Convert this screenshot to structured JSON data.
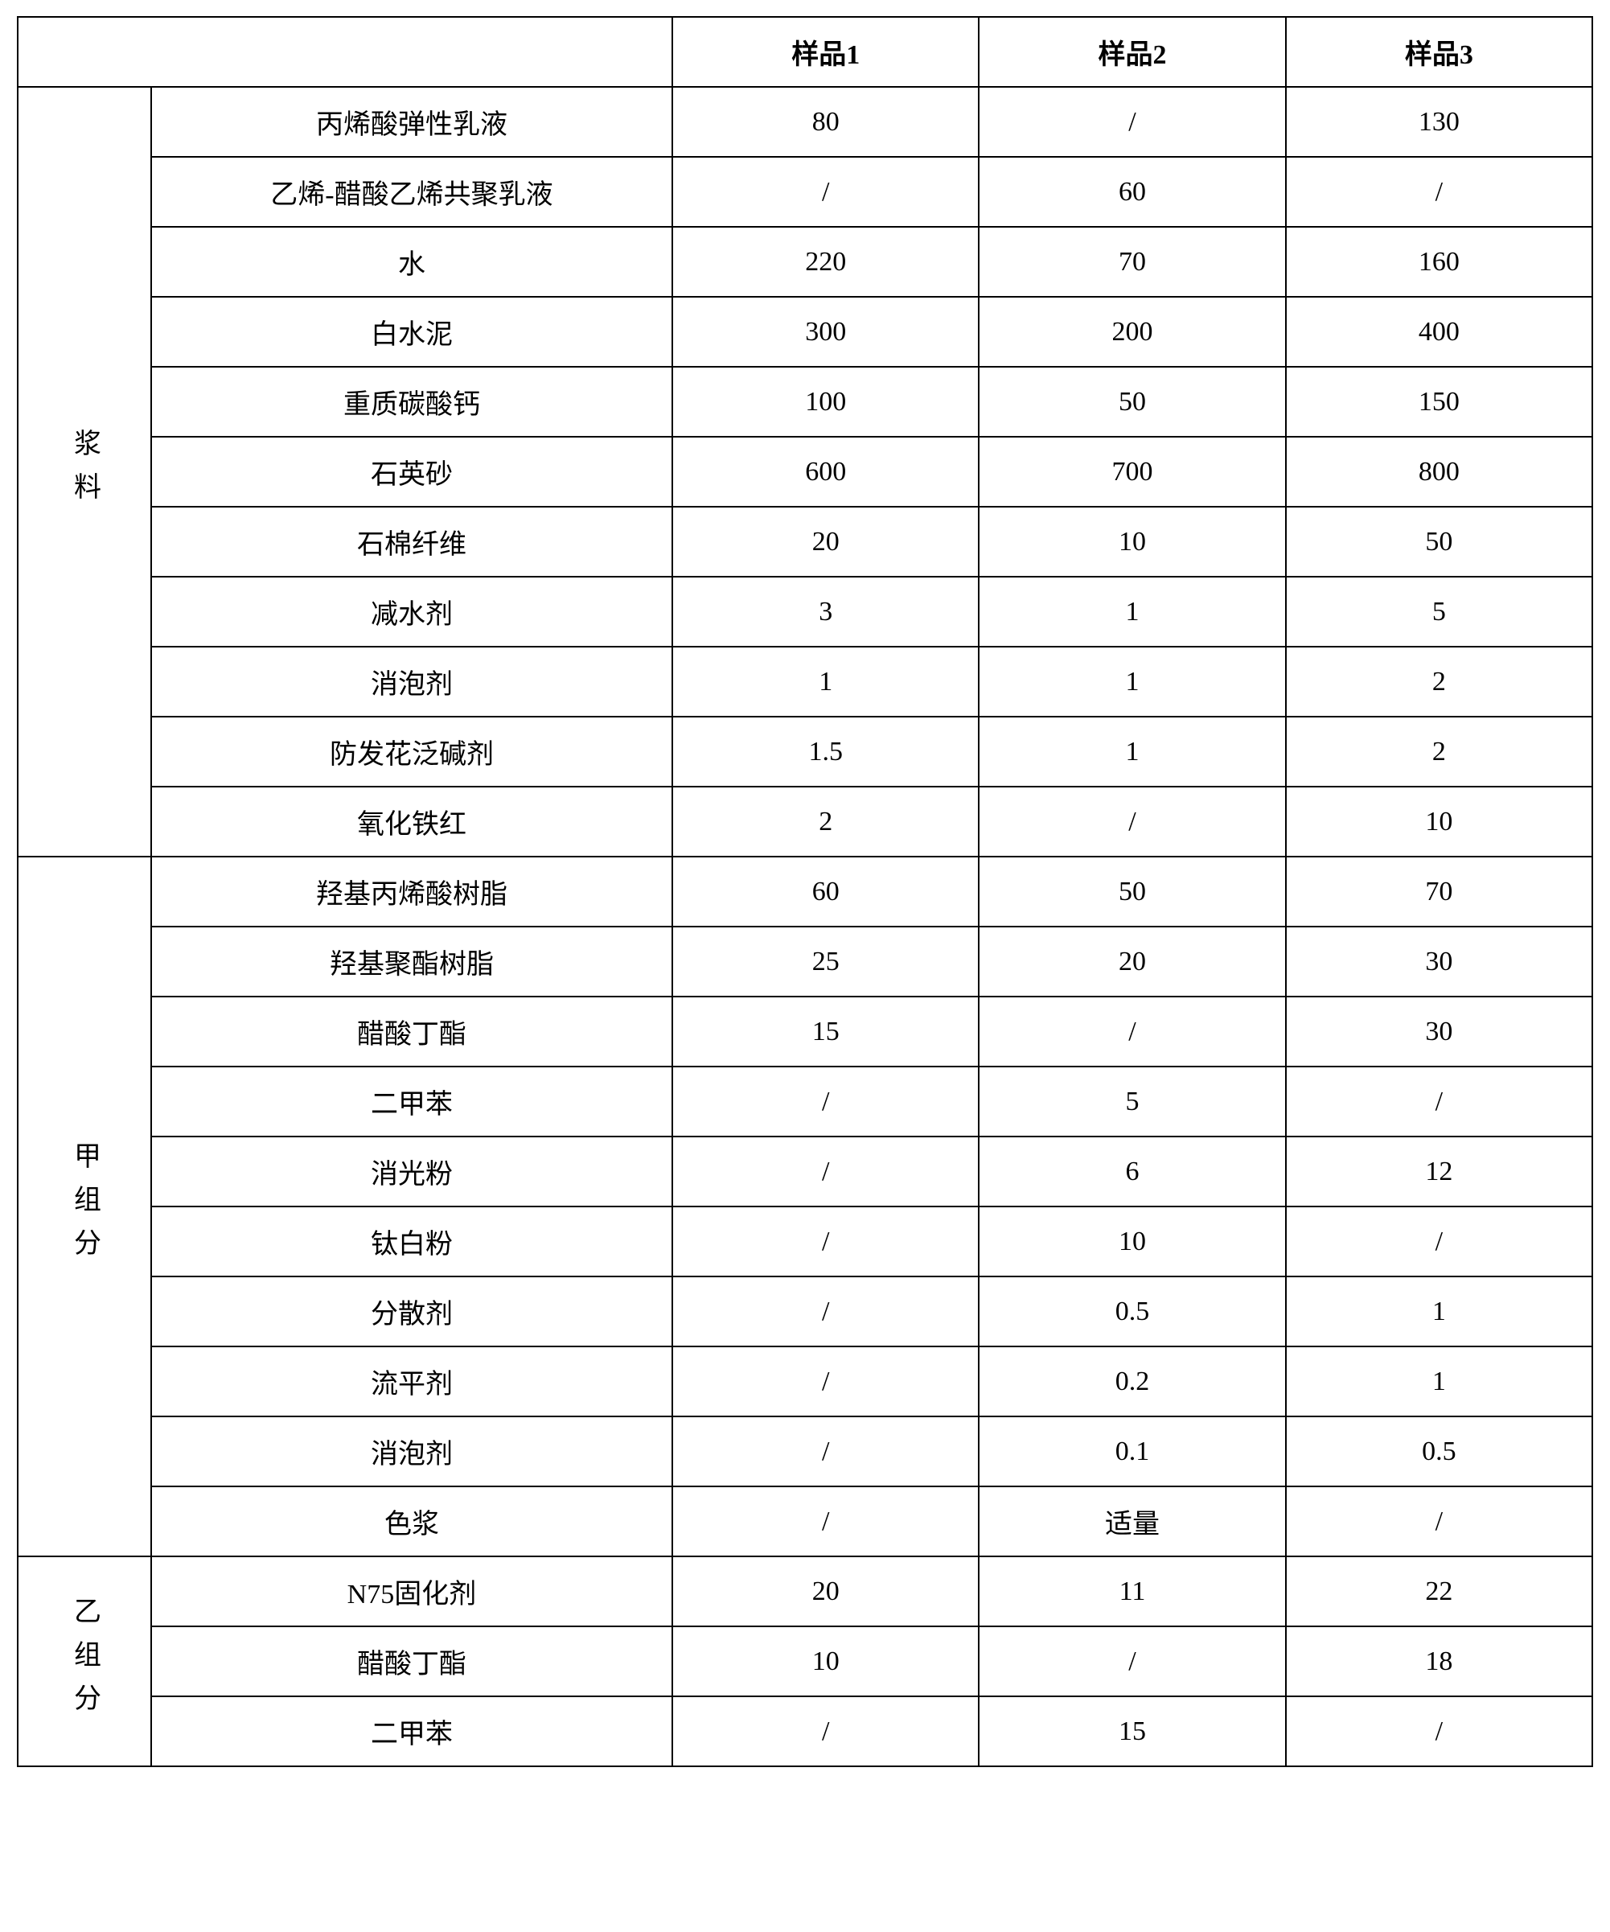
{
  "table": {
    "border_color": "#000000",
    "background_color": "#ffffff",
    "text_color": "#000000",
    "font_size": 34,
    "font_family": "SimSun",
    "headers": {
      "empty": "",
      "sample1": "样品1",
      "sample2": "样品2",
      "sample3": "样品3"
    },
    "groups": [
      {
        "label": "浆料",
        "rows": [
          {
            "name": "丙烯酸弹性乳液",
            "s1": "80",
            "s2": "/",
            "s3": "130"
          },
          {
            "name": "乙烯-醋酸乙烯共聚乳液",
            "s1": "/",
            "s2": "60",
            "s3": "/"
          },
          {
            "name": "水",
            "s1": "220",
            "s2": "70",
            "s3": "160"
          },
          {
            "name": "白水泥",
            "s1": "300",
            "s2": "200",
            "s3": "400"
          },
          {
            "name": "重质碳酸钙",
            "s1": "100",
            "s2": "50",
            "s3": "150"
          },
          {
            "name": "石英砂",
            "s1": "600",
            "s2": "700",
            "s3": "800"
          },
          {
            "name": "石棉纤维",
            "s1": "20",
            "s2": "10",
            "s3": "50"
          },
          {
            "name": "减水剂",
            "s1": "3",
            "s2": "1",
            "s3": "5"
          },
          {
            "name": "消泡剂",
            "s1": "1",
            "s2": "1",
            "s3": "2"
          },
          {
            "name": "防发花泛碱剂",
            "s1": "1.5",
            "s2": "1",
            "s3": "2"
          },
          {
            "name": "氧化铁红",
            "s1": "2",
            "s2": "/",
            "s3": "10"
          }
        ]
      },
      {
        "label": "甲组分",
        "rows": [
          {
            "name": "羟基丙烯酸树脂",
            "s1": "60",
            "s2": "50",
            "s3": "70"
          },
          {
            "name": "羟基聚酯树脂",
            "s1": "25",
            "s2": "20",
            "s3": "30"
          },
          {
            "name": "醋酸丁酯",
            "s1": "15",
            "s2": "/",
            "s3": "30"
          },
          {
            "name": "二甲苯",
            "s1": "/",
            "s2": "5",
            "s3": "/"
          },
          {
            "name": "消光粉",
            "s1": "/",
            "s2": "6",
            "s3": "12"
          },
          {
            "name": "钛白粉",
            "s1": "/",
            "s2": "10",
            "s3": "/"
          },
          {
            "name": "分散剂",
            "s1": "/",
            "s2": "0.5",
            "s3": "1"
          },
          {
            "name": "流平剂",
            "s1": "/",
            "s2": "0.2",
            "s3": "1"
          },
          {
            "name": "消泡剂",
            "s1": "/",
            "s2": "0.1",
            "s3": "0.5"
          },
          {
            "name": "色浆",
            "s1": "/",
            "s2": "适量",
            "s3": "/"
          }
        ]
      },
      {
        "label": "乙组分",
        "rows": [
          {
            "name": "N75固化剂",
            "s1": "20",
            "s2": "11",
            "s3": "22"
          },
          {
            "name": "醋酸丁酯",
            "s1": "10",
            "s2": "/",
            "s3": "18"
          },
          {
            "name": "二甲苯",
            "s1": "/",
            "s2": "15",
            "s3": "/"
          }
        ]
      }
    ]
  }
}
